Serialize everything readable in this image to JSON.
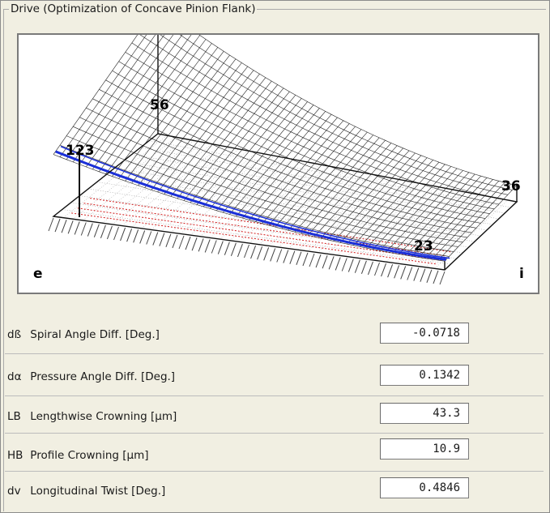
{
  "group": {
    "title": "Drive (Optimization of Concave Pinion Flank)"
  },
  "plot": {
    "corner_labels": {
      "left": "e",
      "right": "i"
    },
    "value_labels": {
      "v123": "123",
      "v56": "56",
      "v36": "36",
      "v23": "23"
    }
  },
  "parameters": [
    {
      "symbol": "dß",
      "label": "Spiral Angle Diff. [Deg.]",
      "value": "-0.0718"
    },
    {
      "symbol": "dα",
      "label": "Pressure Angle Diff. [Deg.]",
      "value": "0.1342"
    },
    {
      "symbol": "LB",
      "label": "Lengthwise Crowning [µm]",
      "value": "43.3"
    },
    {
      "symbol": "HB",
      "label": "Profile Crowning [µm]",
      "value": "10.9"
    },
    {
      "symbol": "dv",
      "label": "Longitudinal Twist [Deg.]",
      "value": "0.4846"
    }
  ]
}
